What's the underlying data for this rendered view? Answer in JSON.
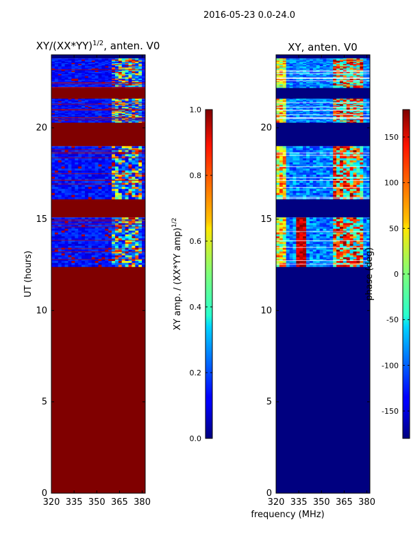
{
  "figure": {
    "suptitle": "2016-05-23 0.0-24.0",
    "shared_xlabel": "frequency (MHz)"
  },
  "colors": {
    "background": "#ffffff",
    "dark_red": "#800000",
    "dark_blue": "#000080"
  },
  "chart_data": [
    {
      "id": "amplitude",
      "type": "heatmap",
      "title": "XY/(XX*YY)",
      "title_sup": "1/2",
      "title_suffix": ", anten. V0",
      "xlabel": "",
      "ylabel": "UT (hours)",
      "xlim": [
        320,
        382
      ],
      "ylim": [
        0,
        24
      ],
      "xticks": [
        "320",
        "335",
        "350",
        "365",
        "380"
      ],
      "xtick_values": [
        320,
        335,
        350,
        365,
        380
      ],
      "yticks": [
        "0",
        "5",
        "10",
        "15",
        "20"
      ],
      "ytick_values": [
        0,
        5,
        10,
        15,
        20
      ],
      "blocks": [
        {
          "t0": 0.0,
          "t1": 12.4,
          "kind": "solid",
          "color": "#800000"
        },
        {
          "t0": 12.4,
          "t1": 15.1,
          "kind": "data"
        },
        {
          "t0": 15.1,
          "t1": 16.1,
          "kind": "solid",
          "color": "#800000"
        },
        {
          "t0": 16.1,
          "t1": 19.0,
          "kind": "data"
        },
        {
          "t0": 19.0,
          "t1": 20.3,
          "kind": "solid",
          "color": "#800000"
        },
        {
          "t0": 20.3,
          "t1": 21.6,
          "kind": "data"
        },
        {
          "t0": 21.6,
          "t1": 22.2,
          "kind": "solid",
          "color": "#800000"
        },
        {
          "t0": 22.2,
          "t1": 23.8,
          "kind": "data"
        }
      ],
      "colorbar": {
        "label": "XY amp. / (XX*YY amp)",
        "label_sup": "1/2",
        "min": 0.0,
        "max": 1.0,
        "ticks": [
          "0.0",
          "0.2",
          "0.4",
          "0.6",
          "0.8",
          "1.0"
        ],
        "tick_values": [
          0.0,
          0.2,
          0.4,
          0.6,
          0.8,
          1.0
        ]
      }
    },
    {
      "id": "phase",
      "type": "heatmap",
      "title": "XY, anten. V0",
      "xlabel": "",
      "ylabel": "",
      "xlim": [
        320,
        382
      ],
      "ylim": [
        0,
        24
      ],
      "xticks": [
        "320",
        "335",
        "350",
        "365",
        "380"
      ],
      "xtick_values": [
        320,
        335,
        350,
        365,
        380
      ],
      "yticks": [
        "0",
        "5",
        "10",
        "15",
        "20"
      ],
      "ytick_values": [
        0,
        5,
        10,
        15,
        20
      ],
      "blocks": [
        {
          "t0": 0.0,
          "t1": 12.4,
          "kind": "solid",
          "color": "#000080"
        },
        {
          "t0": 12.4,
          "t1": 15.1,
          "kind": "data"
        },
        {
          "t0": 15.1,
          "t1": 16.1,
          "kind": "solid",
          "color": "#000080"
        },
        {
          "t0": 16.1,
          "t1": 19.0,
          "kind": "data"
        },
        {
          "t0": 19.0,
          "t1": 20.3,
          "kind": "solid",
          "color": "#000080"
        },
        {
          "t0": 20.3,
          "t1": 21.6,
          "kind": "data"
        },
        {
          "t0": 21.6,
          "t1": 22.2,
          "kind": "solid",
          "color": "#000080"
        },
        {
          "t0": 22.2,
          "t1": 23.8,
          "kind": "data"
        }
      ],
      "colorbar": {
        "label": "phase (deg)",
        "min": -180,
        "max": 180,
        "ticks": [
          "-150",
          "-100",
          "-50",
          "0",
          "50",
          "100",
          "150"
        ],
        "tick_values": [
          -150,
          -100,
          -50,
          0,
          50,
          100,
          150
        ]
      }
    }
  ]
}
